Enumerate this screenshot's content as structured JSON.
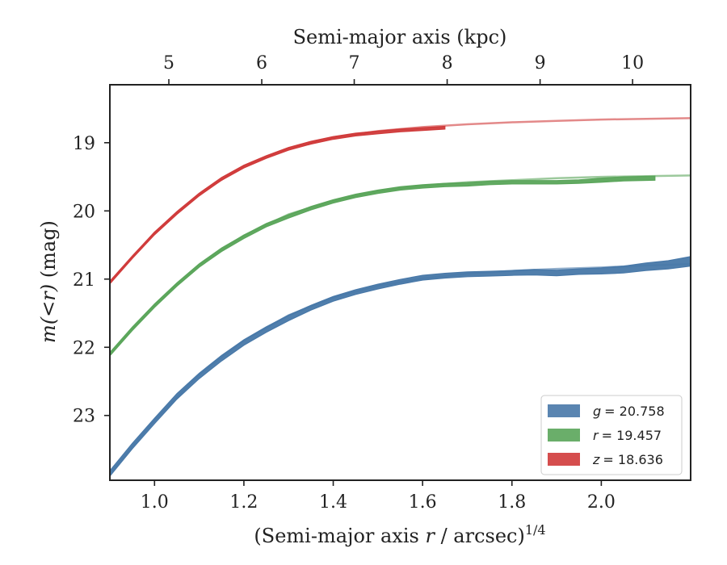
{
  "chart_data": {
    "type": "line",
    "xlabel": "(Semi-major axis r / arcsec)",
    "xlabel_var": "r",
    "xlabel_pre": "(Semi-major axis ",
    "xlabel_post": " / arcsec)",
    "xlabel_sup": "1/4",
    "ylabel": "m(<r) (mag)",
    "ylabel_math": "m(<r)",
    "ylabel_unit": " (mag)",
    "top_xlabel": "Semi-major axis (kpc)",
    "xlim": [
      0.9,
      2.2
    ],
    "ylim": [
      23.95,
      18.15
    ],
    "y_inverted": true,
    "x_ticks": [
      1.0,
      1.2,
      1.4,
      1.6,
      1.8,
      2.0
    ],
    "x_tick_labels": [
      "1.0",
      "1.2",
      "1.4",
      "1.6",
      "1.8",
      "2.0"
    ],
    "y_ticks": [
      19,
      20,
      21,
      22,
      23
    ],
    "y_tick_labels": [
      "19",
      "20",
      "21",
      "22",
      "23"
    ],
    "top_ticks_kpc": [
      5,
      6,
      7,
      8,
      9,
      10
    ],
    "top_tick_labels": [
      "5",
      "6",
      "7",
      "8",
      "9",
      "10"
    ],
    "top_tick_positions_x": [
      1.032,
      1.24,
      1.447,
      1.655,
      1.863,
      2.07
    ],
    "legend_position": "lower-right",
    "grid": false,
    "series": [
      {
        "name": "g = 20.758",
        "legend_var": "g",
        "legend_value": "= 20.758",
        "color": "#4878a8",
        "band": [
          [
            0.9,
            23.85,
            0.04
          ],
          [
            0.95,
            23.45,
            0.04
          ],
          [
            1.0,
            23.08,
            0.04
          ],
          [
            1.05,
            22.72,
            0.04
          ],
          [
            1.1,
            22.42,
            0.04
          ],
          [
            1.15,
            22.16,
            0.04
          ],
          [
            1.2,
            21.93,
            0.04
          ],
          [
            1.25,
            21.74,
            0.04
          ],
          [
            1.3,
            21.57,
            0.04
          ],
          [
            1.35,
            21.42,
            0.035
          ],
          [
            1.4,
            21.29,
            0.035
          ],
          [
            1.45,
            21.19,
            0.035
          ],
          [
            1.5,
            21.11,
            0.035
          ],
          [
            1.55,
            21.04,
            0.035
          ],
          [
            1.6,
            20.98,
            0.035
          ],
          [
            1.65,
            20.95,
            0.035
          ],
          [
            1.7,
            20.93,
            0.035
          ],
          [
            1.75,
            20.92,
            0.035
          ],
          [
            1.8,
            20.91,
            0.035
          ],
          [
            1.85,
            20.9,
            0.04
          ],
          [
            1.9,
            20.91,
            0.04
          ],
          [
            1.95,
            20.89,
            0.04
          ],
          [
            2.0,
            20.88,
            0.045
          ],
          [
            2.05,
            20.86,
            0.05
          ],
          [
            2.1,
            20.82,
            0.055
          ],
          [
            2.15,
            20.79,
            0.06
          ],
          [
            2.2,
            20.74,
            0.07
          ]
        ],
        "model": [
          [
            0.9,
            23.85
          ],
          [
            1.0,
            23.07
          ],
          [
            1.1,
            22.4
          ],
          [
            1.2,
            21.9
          ],
          [
            1.3,
            21.53
          ],
          [
            1.4,
            21.27
          ],
          [
            1.5,
            21.1
          ],
          [
            1.6,
            20.99
          ],
          [
            1.7,
            20.92
          ],
          [
            1.8,
            20.88
          ],
          [
            1.9,
            20.85
          ],
          [
            2.0,
            20.83
          ],
          [
            2.1,
            20.8
          ],
          [
            2.2,
            20.78
          ]
        ]
      },
      {
        "name": "r = 19.457",
        "legend_var": "r",
        "legend_value": "= 19.457",
        "color": "#5aa55a",
        "band": [
          [
            0.9,
            22.1,
            0.025
          ],
          [
            0.95,
            21.73,
            0.025
          ],
          [
            1.0,
            21.39,
            0.025
          ],
          [
            1.05,
            21.08,
            0.025
          ],
          [
            1.1,
            20.8,
            0.025
          ],
          [
            1.15,
            20.57,
            0.025
          ],
          [
            1.2,
            20.38,
            0.025
          ],
          [
            1.25,
            20.21,
            0.025
          ],
          [
            1.3,
            20.08,
            0.025
          ],
          [
            1.35,
            19.96,
            0.025
          ],
          [
            1.4,
            19.86,
            0.025
          ],
          [
            1.45,
            19.78,
            0.025
          ],
          [
            1.5,
            19.72,
            0.025
          ],
          [
            1.55,
            19.67,
            0.025
          ],
          [
            1.6,
            19.64,
            0.025
          ],
          [
            1.65,
            19.62,
            0.025
          ],
          [
            1.7,
            19.61,
            0.025
          ],
          [
            1.75,
            19.59,
            0.025
          ],
          [
            1.8,
            19.58,
            0.025
          ],
          [
            1.85,
            19.58,
            0.025
          ],
          [
            1.9,
            19.58,
            0.025
          ],
          [
            1.95,
            19.57,
            0.025
          ],
          [
            2.0,
            19.55,
            0.03
          ],
          [
            2.05,
            19.53,
            0.03
          ],
          [
            2.12,
            19.52,
            0.03
          ]
        ],
        "model": [
          [
            0.9,
            22.1
          ],
          [
            1.0,
            21.38
          ],
          [
            1.1,
            20.79
          ],
          [
            1.2,
            20.36
          ],
          [
            1.3,
            20.05
          ],
          [
            1.4,
            19.85
          ],
          [
            1.5,
            19.71
          ],
          [
            1.6,
            19.63
          ],
          [
            1.7,
            19.58
          ],
          [
            1.8,
            19.55
          ],
          [
            1.9,
            19.52
          ],
          [
            2.0,
            19.5
          ],
          [
            2.1,
            19.49
          ],
          [
            2.2,
            19.48
          ]
        ]
      },
      {
        "name": "z = 18.636",
        "legend_var": "z",
        "legend_value": "= 18.636",
        "color": "#d03a3a",
        "band": [
          [
            0.9,
            21.05,
            0.02
          ],
          [
            0.95,
            20.68,
            0.02
          ],
          [
            1.0,
            20.33,
            0.02
          ],
          [
            1.05,
            20.03,
            0.02
          ],
          [
            1.1,
            19.76,
            0.02
          ],
          [
            1.15,
            19.53,
            0.02
          ],
          [
            1.2,
            19.35,
            0.02
          ],
          [
            1.25,
            19.21,
            0.02
          ],
          [
            1.3,
            19.09,
            0.02
          ],
          [
            1.35,
            19.0,
            0.02
          ],
          [
            1.4,
            18.93,
            0.02
          ],
          [
            1.45,
            18.88,
            0.02
          ],
          [
            1.5,
            18.85,
            0.02
          ],
          [
            1.55,
            18.82,
            0.02
          ],
          [
            1.6,
            18.8,
            0.02
          ],
          [
            1.65,
            18.78,
            0.02
          ]
        ],
        "model": [
          [
            0.9,
            21.05
          ],
          [
            1.0,
            20.32
          ],
          [
            1.1,
            19.75
          ],
          [
            1.2,
            19.34
          ],
          [
            1.3,
            19.08
          ],
          [
            1.4,
            18.92
          ],
          [
            1.5,
            18.83
          ],
          [
            1.6,
            18.77
          ],
          [
            1.7,
            18.73
          ],
          [
            1.8,
            18.7
          ],
          [
            1.9,
            18.68
          ],
          [
            2.0,
            18.66
          ],
          [
            2.1,
            18.65
          ],
          [
            2.2,
            18.64
          ]
        ]
      }
    ]
  }
}
